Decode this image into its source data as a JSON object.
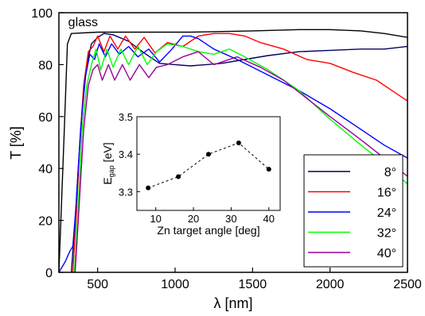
{
  "chart_data": [
    {
      "type": "line",
      "xlabel": "λ [nm]",
      "ylabel": "T [%]",
      "xlim": [
        250,
        2500
      ],
      "ylim": [
        0,
        100
      ],
      "xticks": [
        500,
        1000,
        1500,
        2000,
        2500
      ],
      "yticks": [
        0,
        20,
        40,
        60,
        80,
        100
      ],
      "grid": false,
      "legend_position": "bottom-right",
      "annotations": [
        {
          "text": "glass",
          "x": 310,
          "y": 96
        }
      ],
      "series": [
        {
          "name": "glass",
          "color": "#000000",
          "points": [
            [
              250,
              0
            ],
            [
              285,
              55
            ],
            [
              305,
              88
            ],
            [
              330,
              92
            ],
            [
              500,
              92.5
            ],
            [
              800,
              92.5
            ],
            [
              1100,
              92.5
            ],
            [
              1500,
              93
            ],
            [
              1800,
              93.5
            ],
            [
              2000,
              93.5
            ],
            [
              2200,
              93
            ],
            [
              2350,
              92
            ],
            [
              2500,
              90.5
            ]
          ]
        },
        {
          "name": "8°",
          "color": "#000066",
          "points": [
            [
              330,
              0
            ],
            [
              355,
              20
            ],
            [
              375,
              40
            ],
            [
              400,
              62
            ],
            [
              430,
              80
            ],
            [
              460,
              88
            ],
            [
              500,
              90.5
            ],
            [
              540,
              92
            ],
            [
              600,
              91.5
            ],
            [
              700,
              89
            ],
            [
              800,
              84.5
            ],
            [
              900,
              80.5
            ],
            [
              1000,
              80
            ],
            [
              1100,
              79.5
            ],
            [
              1200,
              80
            ],
            [
              1300,
              80.5
            ],
            [
              1400,
              81.5
            ],
            [
              1600,
              83.5
            ],
            [
              1800,
              85
            ],
            [
              2000,
              85.5
            ],
            [
              2200,
              86
            ],
            [
              2350,
              86
            ],
            [
              2500,
              87
            ]
          ]
        },
        {
          "name": "16°",
          "color": "#ff0000",
          "points": [
            [
              340,
              0
            ],
            [
              365,
              25
            ],
            [
              385,
              50
            ],
            [
              410,
              72
            ],
            [
              440,
              85
            ],
            [
              470,
              87
            ],
            [
              500,
              91
            ],
            [
              540,
              85
            ],
            [
              580,
              91
            ],
            [
              630,
              86
            ],
            [
              680,
              91
            ],
            [
              740,
              86
            ],
            [
              800,
              90.5
            ],
            [
              870,
              84.5
            ],
            [
              950,
              88.5
            ],
            [
              1050,
              87
            ],
            [
              1150,
              91
            ],
            [
              1250,
              92
            ],
            [
              1350,
              92
            ],
            [
              1450,
              91
            ],
            [
              1550,
              88.5
            ],
            [
              1700,
              86
            ],
            [
              1850,
              82
            ],
            [
              2000,
              80.5
            ],
            [
              2150,
              77
            ],
            [
              2300,
              74
            ],
            [
              2400,
              70
            ],
            [
              2500,
              66
            ]
          ]
        },
        {
          "name": "24°",
          "color": "#0000ff",
          "points": [
            [
              250,
              0
            ],
            [
              290,
              4
            ],
            [
              320,
              8
            ],
            [
              340,
              10
            ],
            [
              360,
              25
            ],
            [
              390,
              55
            ],
            [
              420,
              75
            ],
            [
              450,
              84
            ],
            [
              480,
              82
            ],
            [
              510,
              88
            ],
            [
              550,
              83
            ],
            [
              590,
              88
            ],
            [
              640,
              84
            ],
            [
              700,
              87
            ],
            [
              760,
              83
            ],
            [
              830,
              86
            ],
            [
              900,
              81
            ],
            [
              980,
              86
            ],
            [
              1050,
              91
            ],
            [
              1100,
              91
            ],
            [
              1150,
              90
            ],
            [
              1250,
              86
            ],
            [
              1400,
              82
            ],
            [
              1600,
              76
            ],
            [
              1800,
              70
            ],
            [
              2000,
              63
            ],
            [
              2200,
              55
            ],
            [
              2350,
              49
            ],
            [
              2500,
              44
            ]
          ]
        },
        {
          "name": "32°",
          "color": "#00ff00",
          "points": [
            [
              350,
              0
            ],
            [
              375,
              25
            ],
            [
              400,
              55
            ],
            [
              430,
              72
            ],
            [
              460,
              80
            ],
            [
              490,
              86
            ],
            [
              520,
              78
            ],
            [
              560,
              86
            ],
            [
              600,
              79
            ],
            [
              650,
              86
            ],
            [
              700,
              80
            ],
            [
              760,
              87
            ],
            [
              820,
              80
            ],
            [
              880,
              85
            ],
            [
              950,
              88
            ],
            [
              1050,
              87
            ],
            [
              1150,
              85
            ],
            [
              1250,
              84
            ],
            [
              1350,
              86
            ],
            [
              1450,
              83
            ],
            [
              1600,
              78
            ],
            [
              1800,
              70
            ],
            [
              2000,
              59
            ],
            [
              2200,
              49
            ],
            [
              2350,
              42
            ],
            [
              2500,
              34
            ]
          ]
        },
        {
          "name": "40°",
          "color": "#990099",
          "points": [
            [
              355,
              0
            ],
            [
              380,
              25
            ],
            [
              410,
              55
            ],
            [
              440,
              72
            ],
            [
              470,
              78
            ],
            [
              500,
              80
            ],
            [
              530,
              74
            ],
            [
              570,
              80
            ],
            [
              610,
              74
            ],
            [
              660,
              80
            ],
            [
              710,
              74
            ],
            [
              770,
              80
            ],
            [
              830,
              75
            ],
            [
              880,
              79
            ],
            [
              950,
              80
            ],
            [
              1050,
              83
            ],
            [
              1150,
              85
            ],
            [
              1250,
              80
            ],
            [
              1400,
              83
            ],
            [
              1550,
              79
            ],
            [
              1700,
              74
            ],
            [
              1850,
              67
            ],
            [
              2000,
              60
            ],
            [
              2200,
              51
            ],
            [
              2350,
              44
            ],
            [
              2500,
              37
            ]
          ]
        }
      ]
    },
    {
      "type": "scatter",
      "xlabel": "Zn target angle [deg]",
      "ylabel_main": "E",
      "ylabel_sub": "gap",
      "ylabel_unit": " [eV]",
      "xlim": [
        5,
        43
      ],
      "ylim": [
        3.25,
        3.5
      ],
      "xticks": [
        10,
        20,
        30,
        40
      ],
      "yticks": [
        3.3,
        3.4,
        3.5
      ],
      "line_style": "dashed",
      "points": [
        [
          8,
          3.31
        ],
        [
          16,
          3.34
        ],
        [
          24,
          3.4
        ],
        [
          32,
          3.43
        ],
        [
          40,
          3.36
        ]
      ]
    }
  ]
}
